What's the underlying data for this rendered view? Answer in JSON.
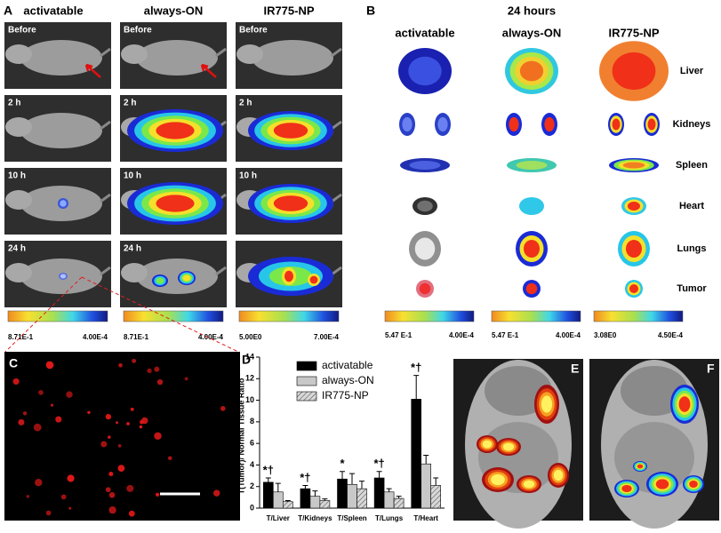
{
  "panel_a": {
    "label": "A",
    "columns": [
      "activatable",
      "always-ON",
      "IR775-NP"
    ],
    "time_labels": [
      [
        "Before",
        "2 h",
        "10 h",
        "24 h"
      ],
      [
        "Before",
        "2 h",
        "10 h",
        "24 h"
      ],
      [
        "Before",
        "2 h",
        "10 h"
      ]
    ],
    "colorbars": [
      [
        "8.71E-1",
        "4.00E-4"
      ],
      [
        "8.71E-1",
        "4.00E-4"
      ],
      [
        "5.00E0",
        "7.00E-4"
      ]
    ]
  },
  "panel_b": {
    "label": "B",
    "title": "24 hours",
    "columns": [
      "activatable",
      "always-ON",
      "IR775-NP"
    ],
    "organs": [
      "Liver",
      "Kidneys",
      "Spleen",
      "Heart",
      "Lungs",
      "Tumor"
    ],
    "colorbars": [
      [
        "5.47 E-1",
        "4.00E-4"
      ],
      [
        "5.47 E-1",
        "4.00E-4"
      ],
      [
        "3.08E0",
        "4.50E-4"
      ]
    ]
  },
  "panel_c": {
    "label": "C"
  },
  "chart_data": {
    "type": "bar",
    "label": "D",
    "ylabel": "T(Tumor)/ Normal Tissue Ratio",
    "categories": [
      "T/Liver",
      "T/Kidneys",
      "T/Spleen",
      "T/Lungs",
      "T/Heart"
    ],
    "series": [
      {
        "name": "activatable",
        "color": "#000000",
        "values": [
          2.4,
          1.8,
          2.7,
          2.8,
          10.1
        ],
        "errors": [
          0.4,
          0.3,
          0.7,
          0.6,
          2.2
        ]
      },
      {
        "name": "always-ON",
        "color": "#c8c8c8",
        "values": [
          1.5,
          1.1,
          2.2,
          1.5,
          4.1
        ],
        "errors": [
          0.8,
          0.5,
          1.0,
          0.3,
          0.8
        ]
      },
      {
        "name": "IR775-NP",
        "color": "#c8c8c8",
        "pattern": "hatch",
        "values": [
          0.6,
          0.7,
          1.8,
          0.9,
          2.1
        ],
        "errors": [
          0.1,
          0.15,
          0.7,
          0.2,
          0.7
        ]
      }
    ],
    "bar_annotations": [
      "*†",
      "*†",
      "*",
      "*†",
      "*†"
    ],
    "ylim": [
      0,
      14
    ],
    "yticks": [
      0,
      2,
      4,
      6,
      8,
      10,
      12,
      14
    ],
    "legend": "upper-left"
  },
  "panel_e": {
    "label": "E"
  },
  "panel_f": {
    "label": "F"
  }
}
